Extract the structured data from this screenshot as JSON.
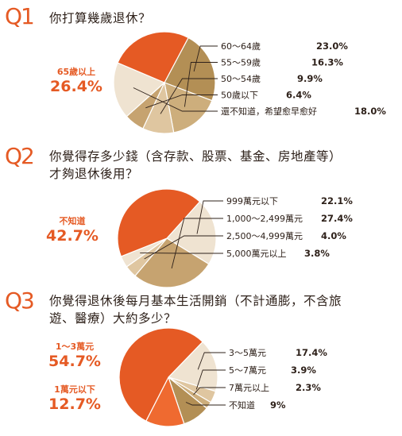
{
  "questions": [
    {
      "mark": "Q1",
      "text": [
        "你打算幾歲退休？"
      ]
    },
    {
      "mark": "Q2",
      "text": [
        "你覺得存多少錢（含存款、股票、基金、房地產等）",
        "才夠退休後用？"
      ]
    },
    {
      "mark": "Q3",
      "text": [
        "你覺得退休後每月基本生活開銷（不計通膨，不含旅",
        "遊、醫療）大約多少？"
      ]
    }
  ],
  "colors": {
    "accent": "#e55a24",
    "gold": "#b38f55",
    "tan": "#cdae7c",
    "light_tan": "#dfc6a0",
    "cream": "#efe3d1"
  },
  "chart_data": [
    {
      "type": "pie",
      "slices": [
        {
          "label": "60〜64歲",
          "value": 23.0,
          "value_label": "23.0%",
          "color": "#b38f55"
        },
        {
          "label": "55〜59歲",
          "value": 16.3,
          "value_label": "16.3%",
          "color": "#cdae7c"
        },
        {
          "label": "50〜54歲",
          "value": 9.9,
          "value_label": "9.9%",
          "color": "#dfc6a0"
        },
        {
          "label": "50歲以下",
          "value": 6.4,
          "value_label": "6.4%",
          "color": "#c6a370"
        },
        {
          "label": "還不知道，希望愈早愈好",
          "value": 18.0,
          "value_label": "18.0%",
          "color": "#efe3d1"
        },
        {
          "label": "65歲以上",
          "value": 26.4,
          "value_label": "26.4%",
          "color": "#e55a24",
          "callout": true
        }
      ]
    },
    {
      "type": "pie",
      "slices": [
        {
          "label": "999萬元以下",
          "value": 22.1,
          "value_label": "22.1%",
          "color": "#efe3d1"
        },
        {
          "label": "1,000〜2,499萬元",
          "value": 27.4,
          "value_label": "27.4%",
          "color": "#c6a370"
        },
        {
          "label": "2,500〜4,999萬元",
          "value": 4.0,
          "value_label": "4.0%",
          "color": "#dfc6a0"
        },
        {
          "label": "5,000萬元以上",
          "value": 3.8,
          "value_label": "3.8%",
          "color": "#efe3d1"
        },
        {
          "label": "不知道",
          "value": 42.7,
          "value_label": "42.7%",
          "color": "#e55a24",
          "callout": true
        }
      ]
    },
    {
      "type": "pie",
      "slices": [
        {
          "label": "3〜5萬元",
          "value": 17.4,
          "value_label": "17.4%",
          "color": "#efe3d1"
        },
        {
          "label": "5〜7萬元",
          "value": 3.9,
          "value_label": "3.9%",
          "color": "#dfc6a0"
        },
        {
          "label": "7萬元以上",
          "value": 2.3,
          "value_label": "2.3%",
          "color": "#cdae7c"
        },
        {
          "label": "不知道",
          "value": 9,
          "value_label": "9%",
          "color": "#b38f55"
        },
        {
          "label": "1萬元以下",
          "value": 12.7,
          "value_label": "12.7%",
          "color": "#ef6a30",
          "callout": true
        },
        {
          "label": "1〜3萬元",
          "value": 54.7,
          "value_label": "54.7%",
          "color": "#e55a24",
          "callout": true
        }
      ]
    }
  ]
}
